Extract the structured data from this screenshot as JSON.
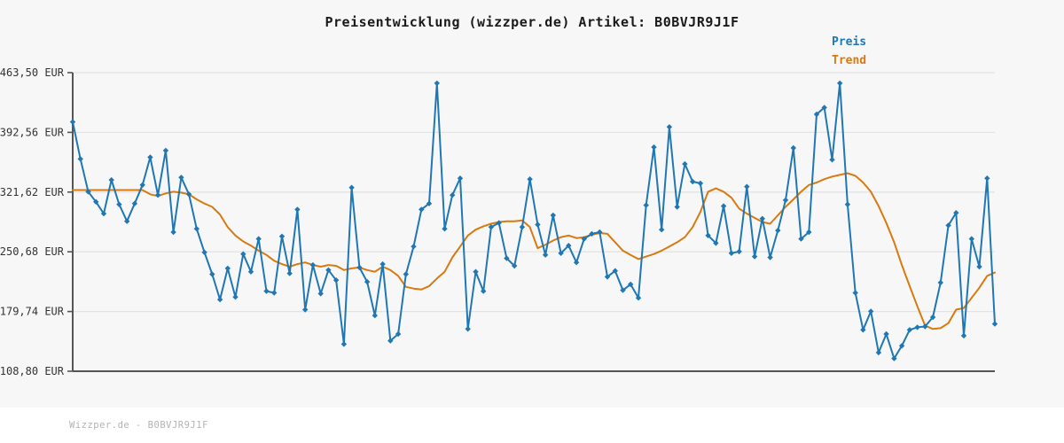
{
  "page": {
    "background": "#f7f7f7",
    "footer_background": "#ffffff"
  },
  "footer": {
    "text": "Wizzper.de - B0BVJR9J1F"
  },
  "chart_data": {
    "type": "line",
    "title": "Preisentwicklung (wizzper.de) Artikel: B0BVJR9J1F",
    "xlabel": "",
    "ylabel": "",
    "ylim": [
      108.8,
      463.5
    ],
    "grid": "horizontal",
    "legend_position": "top-right",
    "colors": {
      "price": "#1f77b4",
      "trend": "#d9790f",
      "grid": "#e3e3e3",
      "spine": "#555555",
      "tick_label": "#333333",
      "title": "#1a1a1a"
    },
    "y_ticks": [
      {
        "value": 463.5,
        "label": "463,50 EUR"
      },
      {
        "value": 392.56,
        "label": "392,56 EUR"
      },
      {
        "value": 321.62,
        "label": "321,62 EUR"
      },
      {
        "value": 250.68,
        "label": "250,68 EUR"
      },
      {
        "value": 179.74,
        "label": "179,74 EUR"
      },
      {
        "value": 108.8,
        "label": "108,80 EUR"
      }
    ],
    "x_tick_labels": [],
    "series": [
      {
        "name": "Preis",
        "color": "#1f77b4",
        "marker": "diamond",
        "values": [
          405,
          361,
          322,
          310,
          296,
          336,
          307,
          287,
          308,
          330,
          363,
          318,
          371,
          274,
          339,
          319,
          278,
          250,
          224,
          194,
          231,
          197,
          248,
          227,
          266,
          204,
          202,
          269,
          225,
          301,
          182,
          235,
          201,
          229,
          217,
          141,
          327,
          232,
          215,
          175,
          236,
          145,
          153,
          224,
          257,
          301,
          308,
          451,
          278,
          318,
          338,
          159,
          227,
          204,
          280,
          285,
          243,
          234,
          280,
          337,
          283,
          247,
          294,
          249,
          258,
          238,
          266,
          272,
          274,
          221,
          228,
          205,
          212,
          196,
          306,
          375,
          277,
          399,
          304,
          355,
          334,
          332,
          270,
          261,
          305,
          249,
          251,
          328,
          245,
          290,
          244,
          276,
          312,
          374,
          266,
          274,
          414,
          422,
          360,
          451,
          307,
          202,
          158,
          180,
          131,
          153,
          124,
          139,
          158,
          161,
          162,
          173,
          214,
          282,
          297,
          151,
          266,
          233,
          338,
          165
        ]
      },
      {
        "name": "Trend",
        "color": "#d9790f",
        "marker": "none",
        "values": [
          324,
          324,
          324,
          324,
          324,
          324,
          324,
          324,
          324,
          324,
          319,
          317,
          320,
          322,
          321,
          319,
          313,
          308,
          304,
          295,
          280,
          270,
          263,
          258,
          252,
          247,
          240,
          236,
          233,
          236,
          238,
          235,
          233,
          235,
          234,
          229,
          231,
          232,
          229,
          227,
          233,
          229,
          222,
          209,
          207,
          206,
          210,
          219,
          227,
          244,
          257,
          270,
          277,
          281,
          284,
          286,
          287,
          287,
          288,
          280,
          255,
          259,
          264,
          268,
          270,
          267,
          268,
          271,
          273,
          272,
          262,
          252,
          247,
          242,
          245,
          248,
          252,
          257,
          262,
          268,
          280,
          298,
          322,
          326,
          322,
          315,
          302,
          296,
          291,
          286,
          284,
          294,
          304,
          313,
          322,
          330,
          333,
          337,
          340,
          342,
          344,
          341,
          333,
          322,
          305,
          285,
          262,
          235,
          210,
          186,
          163,
          159,
          160,
          166,
          182,
          184,
          196,
          208,
          222,
          226
        ]
      }
    ]
  }
}
